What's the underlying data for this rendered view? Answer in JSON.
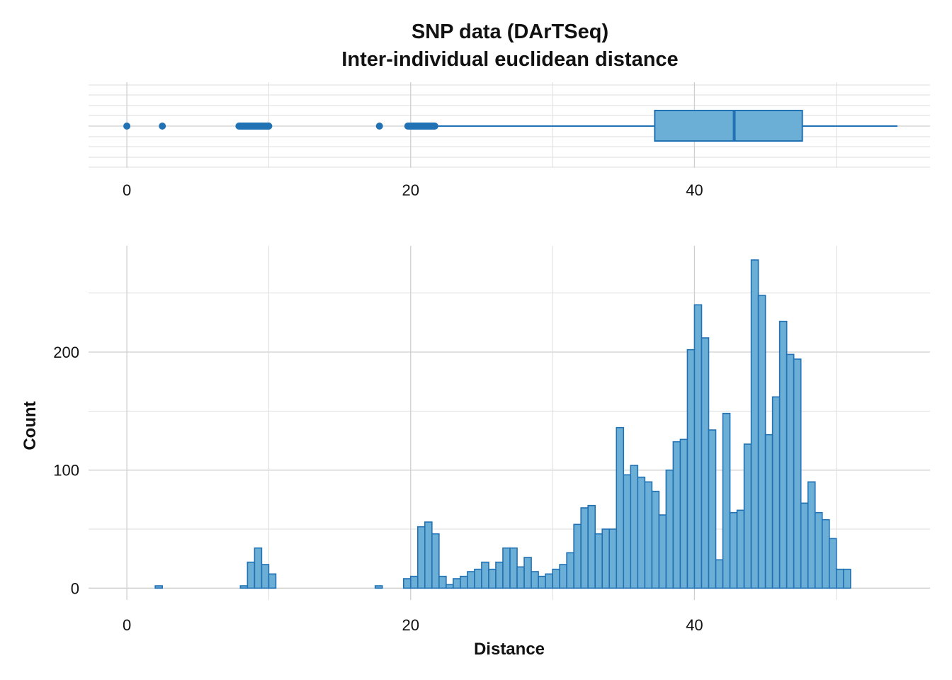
{
  "chart_data": [
    {
      "type": "boxplot",
      "title": "SNP data (DArTSeq)",
      "subtitle": "Inter-individual euclidean distance",
      "x_ticks": [
        0,
        20,
        40
      ],
      "xlim": [
        -2.7,
        56.6
      ],
      "box": {
        "q1": 37.2,
        "median": 42.8,
        "q3": 47.6,
        "whisker_low": 21.7,
        "whisker_high": 54.3
      },
      "outliers": [
        0.0,
        2.5
      ],
      "outlier_ranges": [
        [
          7.9,
          10.0
        ],
        [
          17.8,
          17.8
        ],
        [
          19.8,
          21.7
        ]
      ],
      "fill_color": "#6baed6",
      "stroke_color": "#2171b5",
      "grid": true
    },
    {
      "type": "histogram",
      "xlabel": "Distance",
      "ylabel": "Count",
      "x_ticks": [
        0,
        20,
        40
      ],
      "y_ticks": [
        0,
        100,
        200
      ],
      "xlim": [
        -2.7,
        56.6
      ],
      "ylim": [
        -10,
        290
      ],
      "bin_width": 0.5,
      "bin_start": 0.5,
      "counts": [
        0,
        0,
        0,
        2,
        0,
        0,
        0,
        0,
        0,
        0,
        0,
        0,
        0,
        0,
        0,
        2,
        22,
        34,
        20,
        12,
        0,
        0,
        0,
        0,
        0,
        0,
        0,
        0,
        0,
        0,
        0,
        0,
        0,
        0,
        2,
        0,
        0,
        0,
        8,
        10,
        52,
        56,
        46,
        10,
        3,
        8,
        10,
        14,
        16,
        22,
        16,
        22,
        34,
        34,
        18,
        26,
        14,
        10,
        12,
        16,
        20,
        30,
        54,
        68,
        70,
        46,
        50,
        50,
        136,
        96,
        104,
        94,
        90,
        82,
        62,
        100,
        124,
        126,
        202,
        240,
        212,
        134,
        24,
        148,
        64,
        66,
        122,
        278,
        248,
        130,
        162,
        226,
        198,
        194,
        72,
        90,
        64,
        58,
        42,
        16,
        16
      ],
      "fill_color": "#6baed6",
      "stroke_color": "#2171b5",
      "grid": true
    }
  ]
}
